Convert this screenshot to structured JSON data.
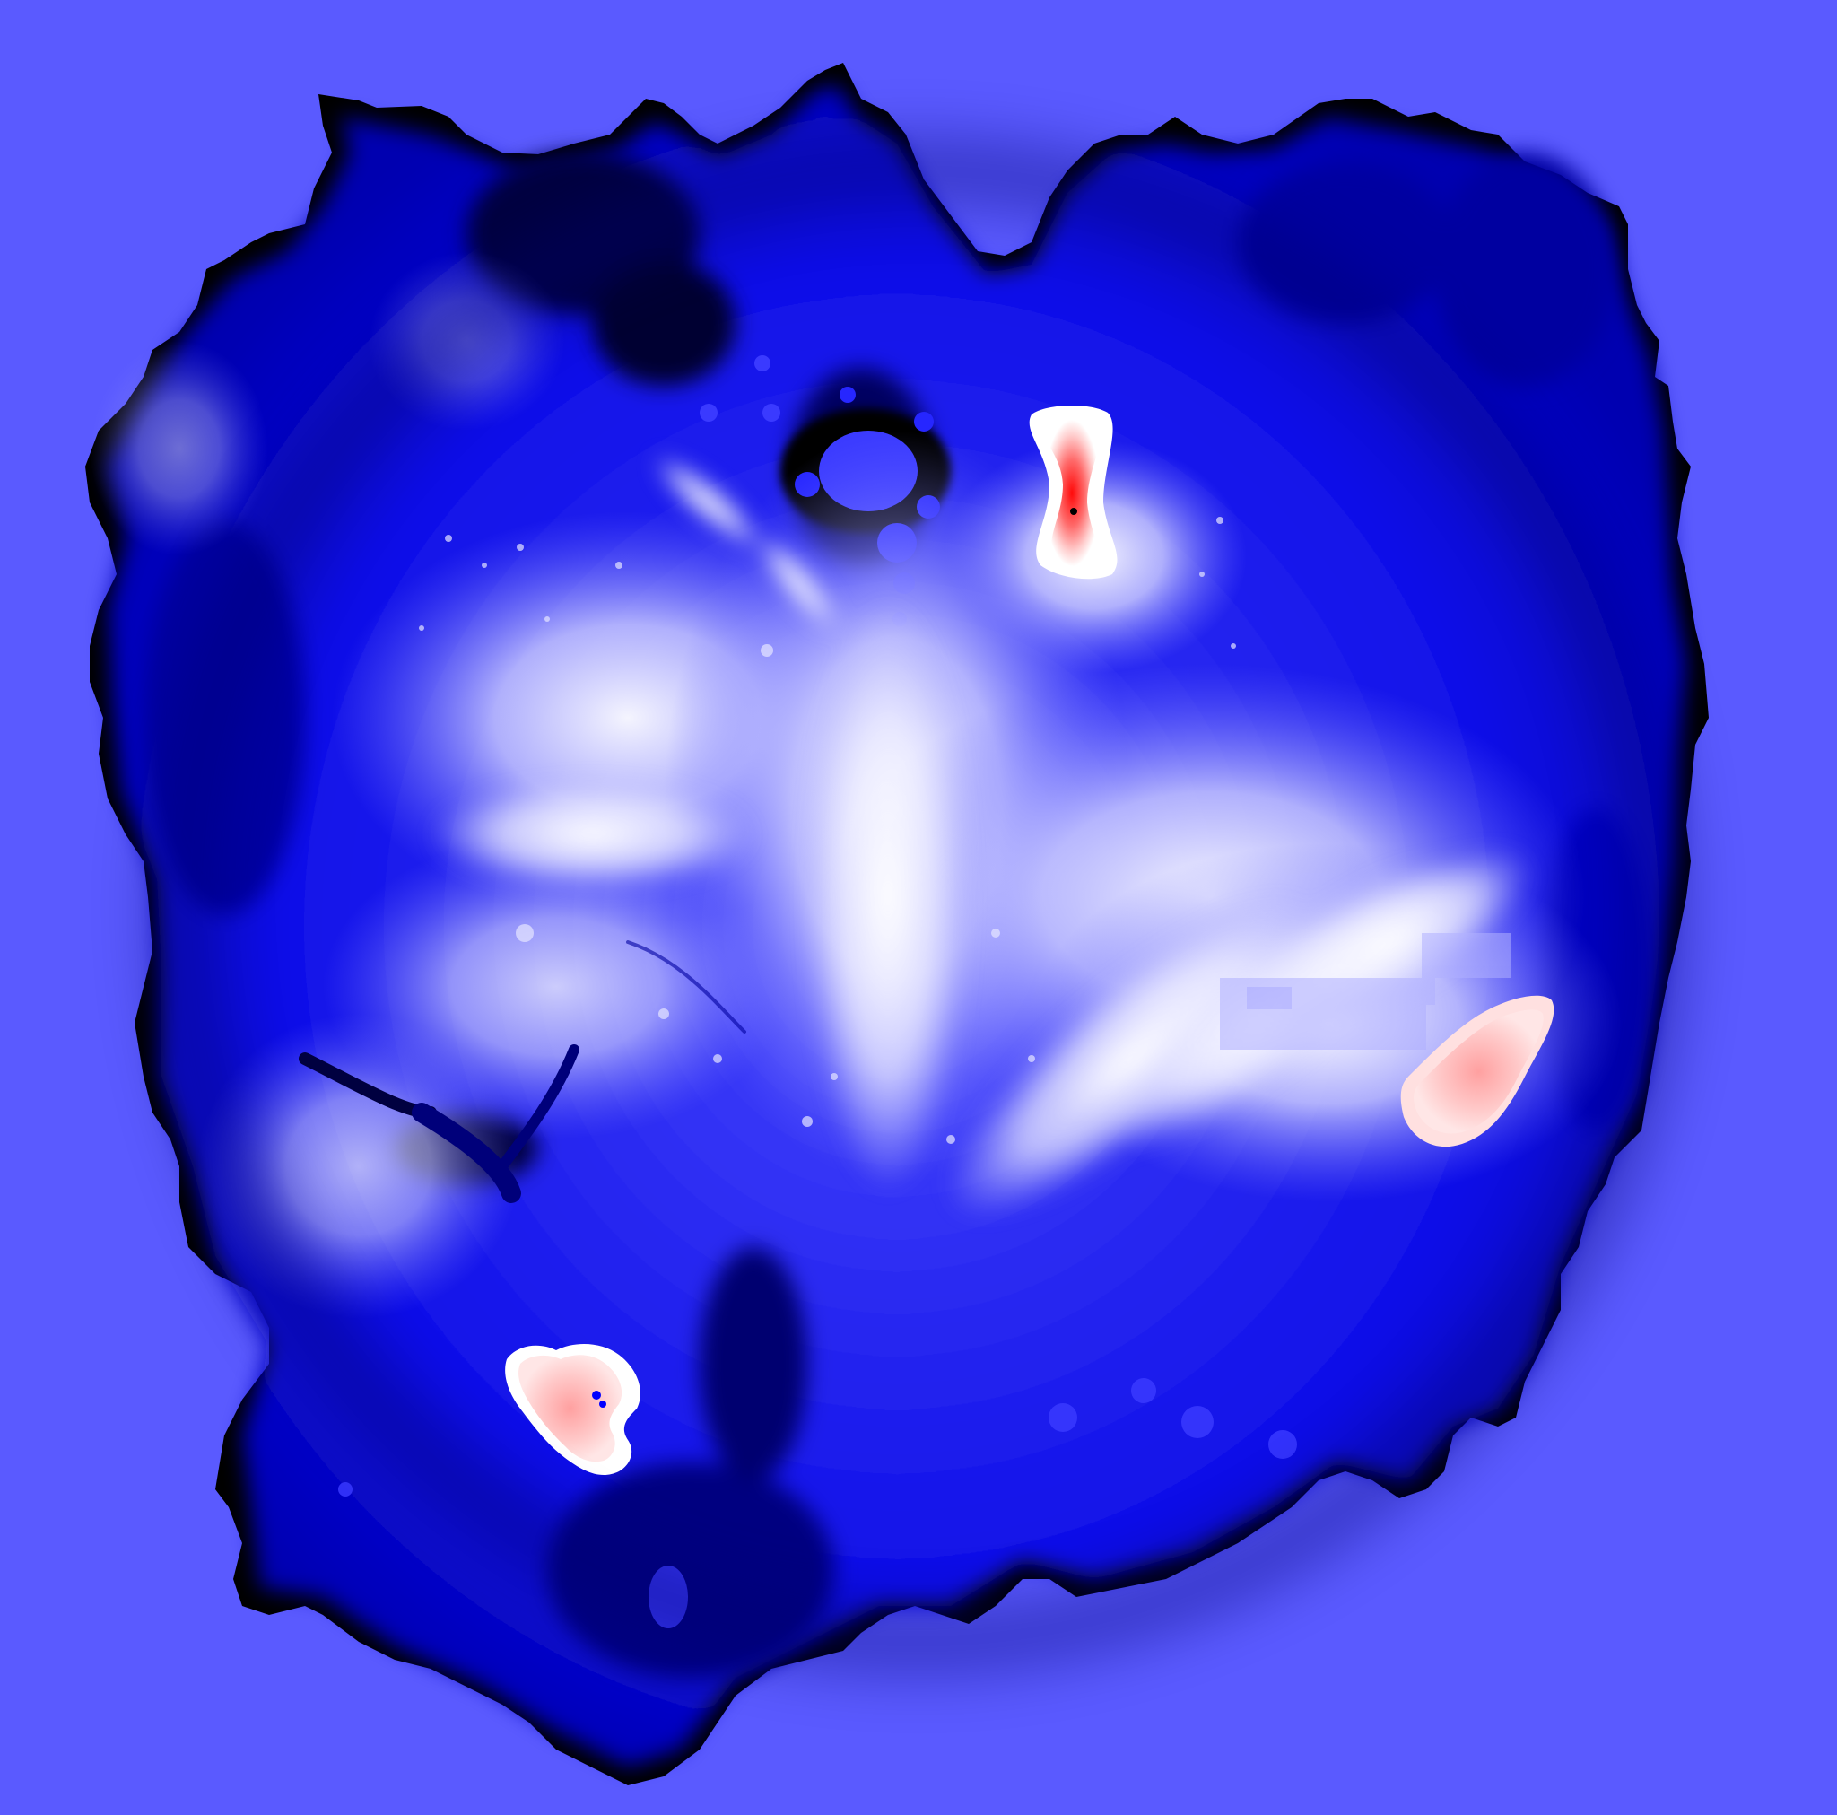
{
  "map": {
    "colors": {
      "background": "#5a5aff",
      "deep": "#000000",
      "dark": "#0000cc",
      "mid": "#3333ff",
      "light": "#9a9aff",
      "pale": "#dcdcff",
      "white": "#ffffff",
      "peak_light": "#ffc8c8",
      "peak": "#ff6a6a",
      "peak_core": "#ff1a1a"
    },
    "legend": []
  }
}
